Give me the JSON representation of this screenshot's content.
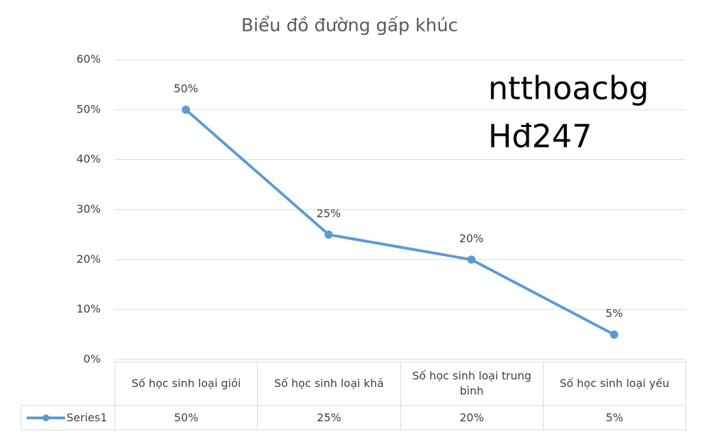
{
  "chart_data": {
    "type": "line",
    "title": "Biểu đồ đường gấp khúc",
    "categories": [
      "Số học sinh loại giỏi",
      "Số học sinh loại khá",
      "Số học sinh loại trung bình",
      "Số học sinh loại yếu"
    ],
    "series": [
      {
        "name": "Series1",
        "color": "#5b9bd5",
        "values": [
          50,
          25,
          20,
          5
        ],
        "value_labels": [
          "50%",
          "25%",
          "20%",
          "5%"
        ]
      }
    ],
    "ylim": [
      0,
      60
    ],
    "yticks": [
      {
        "value": 0,
        "label": "0%"
      },
      {
        "value": 10,
        "label": "10%"
      },
      {
        "value": 20,
        "label": "20%"
      },
      {
        "value": 30,
        "label": "30%"
      },
      {
        "value": 40,
        "label": "40%"
      },
      {
        "value": 50,
        "label": "50%"
      },
      {
        "value": 60,
        "label": "60%"
      }
    ],
    "grid": true,
    "annotations": [
      "ntthoacbg",
      "Hđ247"
    ]
  }
}
